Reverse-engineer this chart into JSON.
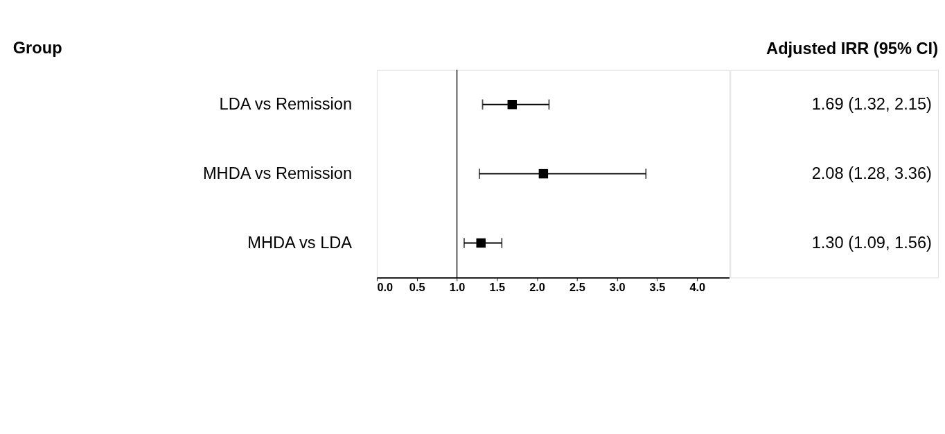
{
  "chart_data": {
    "type": "scatter",
    "orientation": "horizontal",
    "annotations": [
      "Group",
      "Adjusted IRR (95% CI)"
    ],
    "categories": [
      "LDA vs Remission",
      "MHDA vs Remission",
      "MHDA vs LDA"
    ],
    "values": [
      1.69,
      2.08,
      1.3
    ],
    "errors": [
      [
        1.32,
        2.15
      ],
      [
        1.28,
        3.36
      ],
      [
        1.09,
        1.56
      ]
    ],
    "value_labels": [
      "1.69 (1.32, 2.15)",
      "2.08 (1.28, 3.36)",
      "1.30 (1.09, 1.56)"
    ],
    "color": "#000000",
    "marker": "square",
    "xlim": [
      0,
      4.4
    ],
    "xticks": [
      {
        "value": 0,
        "label": "0.0"
      },
      {
        "value": 0.5,
        "label": "0.5"
      },
      {
        "value": 1,
        "label": "1.0"
      },
      {
        "value": 1.5,
        "label": "1.5"
      },
      {
        "value": 2,
        "label": "2.0"
      },
      {
        "value": 2.5,
        "label": "2.5"
      },
      {
        "value": 3,
        "label": "3.0"
      },
      {
        "value": 3.5,
        "label": "3.5"
      },
      {
        "value": 4,
        "label": "4.0"
      }
    ],
    "ref_lines": [
      {
        "axis": "x",
        "value": 1,
        "label": null
      }
    ],
    "grid": false
  }
}
